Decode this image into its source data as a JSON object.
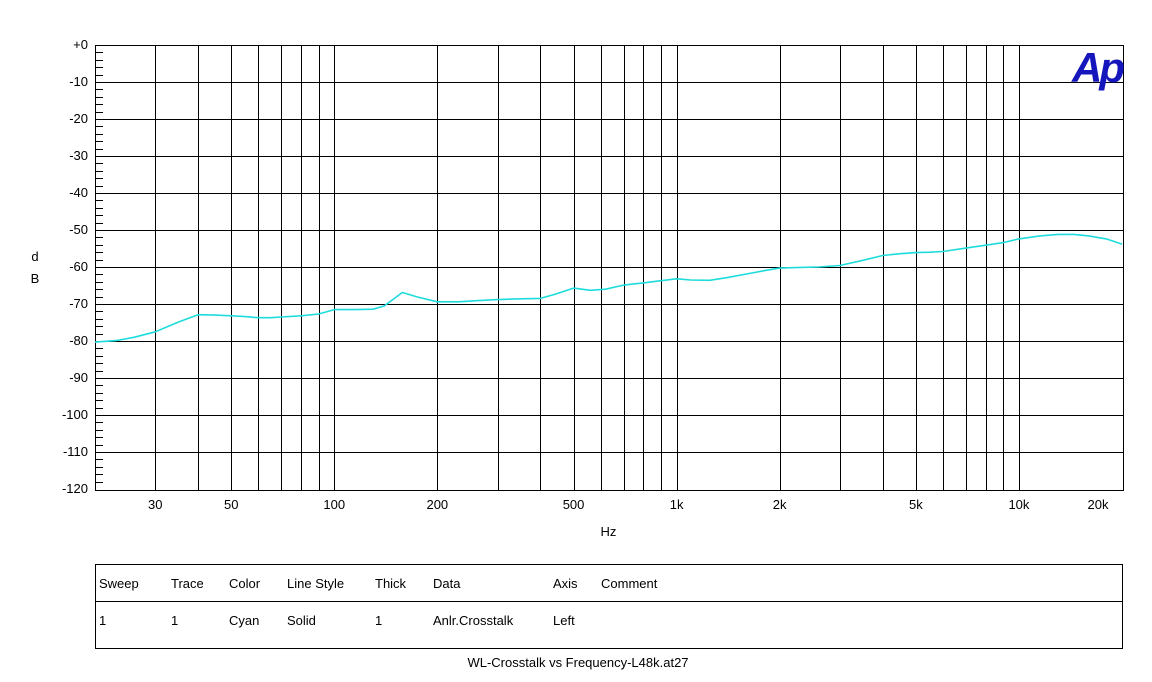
{
  "logo": {
    "text": "Ap",
    "color": "#1616bd"
  },
  "chart_data": {
    "type": "line",
    "title": "WL-Crosstalk vs Frequency-L48k.at27",
    "xlabel": "Hz",
    "ylabel": "dB",
    "ylabel_lines": [
      "d",
      "B"
    ],
    "x_scale": "log",
    "x_range_hz": [
      20,
      20000
    ],
    "y_range_db": [
      0,
      -120
    ],
    "y_major_step_db": 10,
    "y_minor_step_db": 2,
    "grid": true,
    "legend_position": "table-below",
    "grid_color": "#000000",
    "x_ticks": [
      {
        "hz": 30,
        "label": "30"
      },
      {
        "hz": 50,
        "label": "50"
      },
      {
        "hz": 100,
        "label": "100"
      },
      {
        "hz": 200,
        "label": "200"
      },
      {
        "hz": 500,
        "label": "500"
      },
      {
        "hz": 1000,
        "label": "1k"
      },
      {
        "hz": 2000,
        "label": "2k"
      },
      {
        "hz": 5000,
        "label": "5k"
      },
      {
        "hz": 10000,
        "label": "10k"
      },
      {
        "hz": 20000,
        "label": "20k"
      }
    ],
    "y_ticks": [
      "+0",
      "-10",
      "-20",
      "-30",
      "-40",
      "-50",
      "-60",
      "-70",
      "-80",
      "-90",
      "-100",
      "-110",
      "-120"
    ],
    "series": [
      {
        "name": "Anlr.Crosstalk",
        "color_name": "Cyan",
        "color": "#1edcdc",
        "line_style": "solid",
        "thickness": 1,
        "axis": "Left",
        "points": [
          [
            20,
            -80.3
          ],
          [
            23,
            -79.9
          ],
          [
            26,
            -79.0
          ],
          [
            30,
            -77.5
          ],
          [
            35,
            -74.9
          ],
          [
            40,
            -72.9
          ],
          [
            45,
            -73.0
          ],
          [
            50,
            -73.2
          ],
          [
            55,
            -73.4
          ],
          [
            60,
            -73.7
          ],
          [
            65,
            -73.7
          ],
          [
            70,
            -73.5
          ],
          [
            80,
            -73.2
          ],
          [
            90,
            -72.7
          ],
          [
            100,
            -71.5
          ],
          [
            115,
            -71.5
          ],
          [
            130,
            -71.4
          ],
          [
            140,
            -70.5
          ],
          [
            158,
            -66.9
          ],
          [
            175,
            -68.1
          ],
          [
            200,
            -69.4
          ],
          [
            230,
            -69.4
          ],
          [
            260,
            -69.1
          ],
          [
            300,
            -68.8
          ],
          [
            350,
            -68.6
          ],
          [
            400,
            -68.5
          ],
          [
            440,
            -67.4
          ],
          [
            500,
            -65.7
          ],
          [
            560,
            -66.3
          ],
          [
            620,
            -66.0
          ],
          [
            700,
            -64.9
          ],
          [
            800,
            -64.3
          ],
          [
            900,
            -63.7
          ],
          [
            1000,
            -63.2
          ],
          [
            1100,
            -63.5
          ],
          [
            1250,
            -63.6
          ],
          [
            1400,
            -62.9
          ],
          [
            1600,
            -61.9
          ],
          [
            1800,
            -61.0
          ],
          [
            2000,
            -60.3
          ],
          [
            2300,
            -60.1
          ],
          [
            2600,
            -60.0
          ],
          [
            3000,
            -59.6
          ],
          [
            3500,
            -58.2
          ],
          [
            4000,
            -56.9
          ],
          [
            4500,
            -56.4
          ],
          [
            5000,
            -56.1
          ],
          [
            5500,
            -56.0
          ],
          [
            6000,
            -55.8
          ],
          [
            7000,
            -54.9
          ],
          [
            8000,
            -54.1
          ],
          [
            9000,
            -53.4
          ],
          [
            10000,
            -52.4
          ],
          [
            11500,
            -51.6
          ],
          [
            13000,
            -51.2
          ],
          [
            14500,
            -51.2
          ],
          [
            16000,
            -51.6
          ],
          [
            18000,
            -52.4
          ],
          [
            20000,
            -53.8
          ]
        ]
      }
    ]
  },
  "table": {
    "headers": [
      "Sweep",
      "Trace",
      "Color",
      "Line Style",
      "Thick",
      "Data",
      "Axis",
      "Comment"
    ],
    "rows": [
      [
        "1",
        "1",
        "Cyan",
        "Solid",
        "1",
        "Anlr.Crosstalk",
        "Left",
        ""
      ]
    ]
  }
}
